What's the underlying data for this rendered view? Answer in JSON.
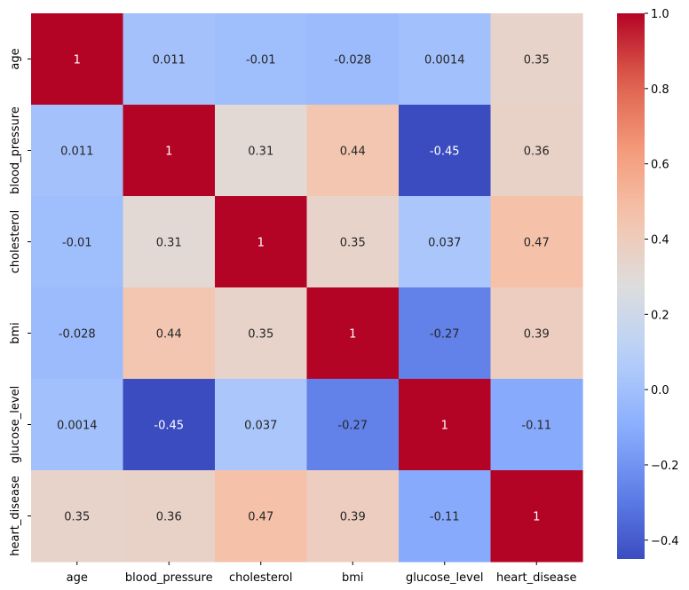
{
  "chart_data": {
    "type": "heatmap",
    "title": "",
    "xlabel": "",
    "ylabel": "",
    "x": [
      "age",
      "blood_pressure",
      "cholesterol",
      "bmi",
      "glucose_level",
      "heart_disease"
    ],
    "y": [
      "age",
      "blood_pressure",
      "cholesterol",
      "bmi",
      "glucose_level",
      "heart_disease"
    ],
    "values": [
      [
        1,
        0.011,
        -0.01,
        -0.028,
        0.0014,
        0.35
      ],
      [
        0.011,
        1,
        0.31,
        0.44,
        -0.45,
        0.36
      ],
      [
        -0.01,
        0.31,
        1,
        0.35,
        0.037,
        0.47
      ],
      [
        -0.028,
        0.44,
        0.35,
        1,
        -0.27,
        0.39
      ],
      [
        0.0014,
        -0.45,
        0.037,
        -0.27,
        1,
        -0.11
      ],
      [
        0.35,
        0.36,
        0.47,
        0.39,
        -0.11,
        1
      ]
    ],
    "value_labels": [
      [
        "1",
        "0.011",
        "-0.01",
        "-0.028",
        "0.0014",
        "0.35"
      ],
      [
        "0.011",
        "1",
        "0.31",
        "0.44",
        "-0.45",
        "0.36"
      ],
      [
        "-0.01",
        "0.31",
        "1",
        "0.35",
        "0.037",
        "0.47"
      ],
      [
        "-0.028",
        "0.44",
        "0.35",
        "1",
        "-0.27",
        "0.39"
      ],
      [
        "0.0014",
        "-0.45",
        "0.037",
        "-0.27",
        "1",
        "-0.11"
      ],
      [
        "0.35",
        "0.36",
        "0.47",
        "0.39",
        "-0.11",
        "1"
      ]
    ],
    "colormap": "coolwarm",
    "color_range": [
      -0.45,
      1
    ],
    "colorbar": {
      "ticks": [
        -0.4,
        -0.2,
        0.0,
        0.2,
        0.4,
        0.6,
        0.8,
        1.0
      ],
      "tick_labels": [
        "−0.4",
        "−0.2",
        "0.0",
        "0.2",
        "0.4",
        "0.6",
        "0.8",
        "1.0"
      ],
      "placement": "right"
    },
    "grid": false
  }
}
